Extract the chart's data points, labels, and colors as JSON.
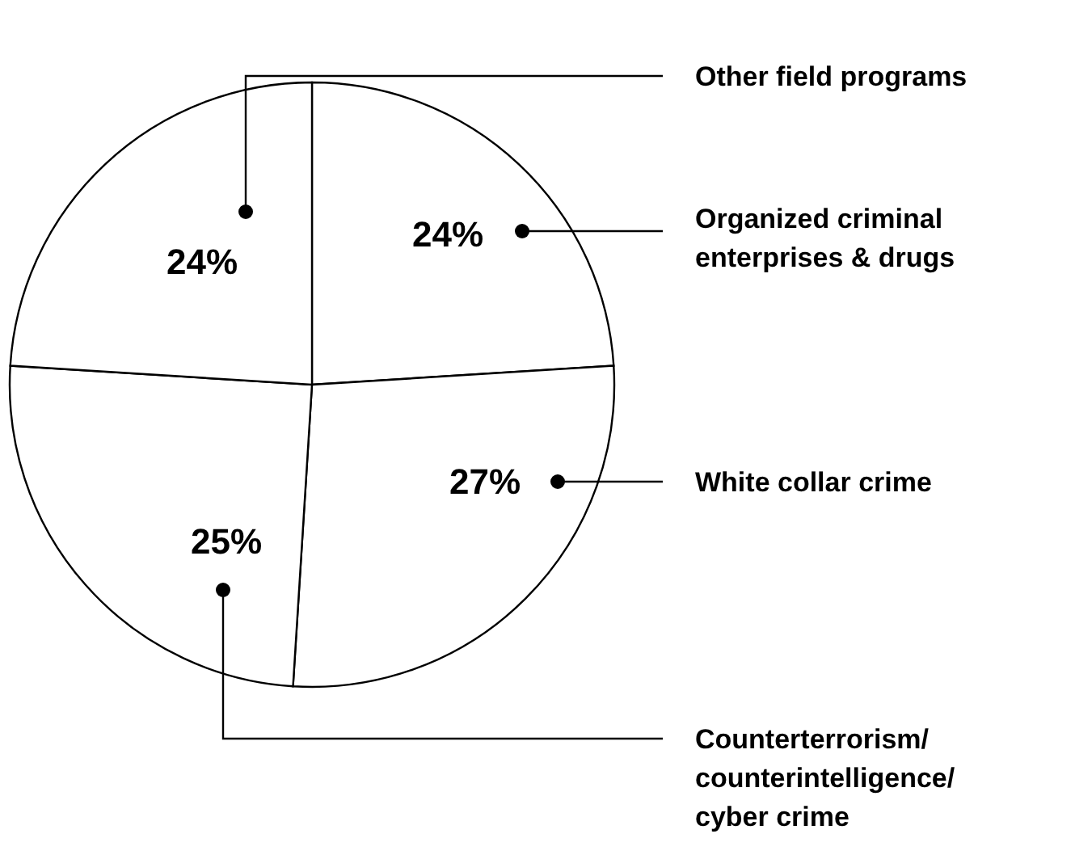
{
  "chart_data": {
    "type": "pie",
    "categories": [
      "Organized criminal enterprises & drugs",
      "White collar crime",
      "Counterterrorism/ counterintelligence/ cyber crime",
      "Other field programs"
    ],
    "values": [
      24,
      27,
      25,
      24
    ],
    "colors": [
      "#ffffff",
      "#ffffff",
      "#ffffff",
      "#ffffff"
    ],
    "value_labels": [
      "24%",
      "27%",
      "25%",
      "24%"
    ]
  }
}
